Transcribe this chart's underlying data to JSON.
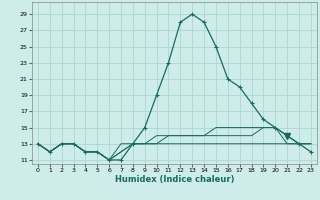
{
  "xlabel": "Humidex (Indice chaleur)",
  "background_color": "#ceecea",
  "grid_color": "#aed6d2",
  "line_color": "#1a6b5a",
  "xlim": [
    -0.5,
    23.5
  ],
  "ylim": [
    10.5,
    30.5
  ],
  "xticks": [
    0,
    1,
    2,
    3,
    4,
    5,
    6,
    7,
    8,
    9,
    10,
    11,
    12,
    13,
    14,
    15,
    16,
    17,
    18,
    19,
    20,
    21,
    22,
    23
  ],
  "yticks": [
    11,
    13,
    15,
    17,
    19,
    21,
    23,
    25,
    27,
    29
  ],
  "hours": [
    0,
    1,
    2,
    3,
    4,
    5,
    6,
    7,
    8,
    9,
    10,
    11,
    12,
    13,
    14,
    15,
    16,
    17,
    18,
    19,
    20,
    21,
    22,
    23
  ],
  "humidex1": [
    13,
    12,
    13,
    13,
    12,
    12,
    11,
    11,
    13,
    15,
    19,
    23,
    28,
    29,
    28,
    25,
    21,
    20,
    18,
    16,
    15,
    14,
    13,
    12
  ],
  "humidex2": [
    13,
    12,
    13,
    13,
    12,
    12,
    11,
    12,
    13,
    13,
    13,
    13,
    13,
    13,
    13,
    13,
    13,
    13,
    13,
    13,
    13,
    13,
    13,
    13
  ],
  "humidex3": [
    13,
    12,
    13,
    13,
    12,
    12,
    11,
    12,
    13,
    13,
    14,
    14,
    14,
    14,
    14,
    14,
    14,
    14,
    14,
    15,
    15,
    13,
    13,
    13
  ],
  "humidex4": [
    13,
    12,
    13,
    13,
    12,
    12,
    11,
    13,
    13,
    13,
    13,
    14,
    14,
    14,
    14,
    15,
    15,
    15,
    15,
    15,
    15,
    14,
    13,
    13
  ]
}
